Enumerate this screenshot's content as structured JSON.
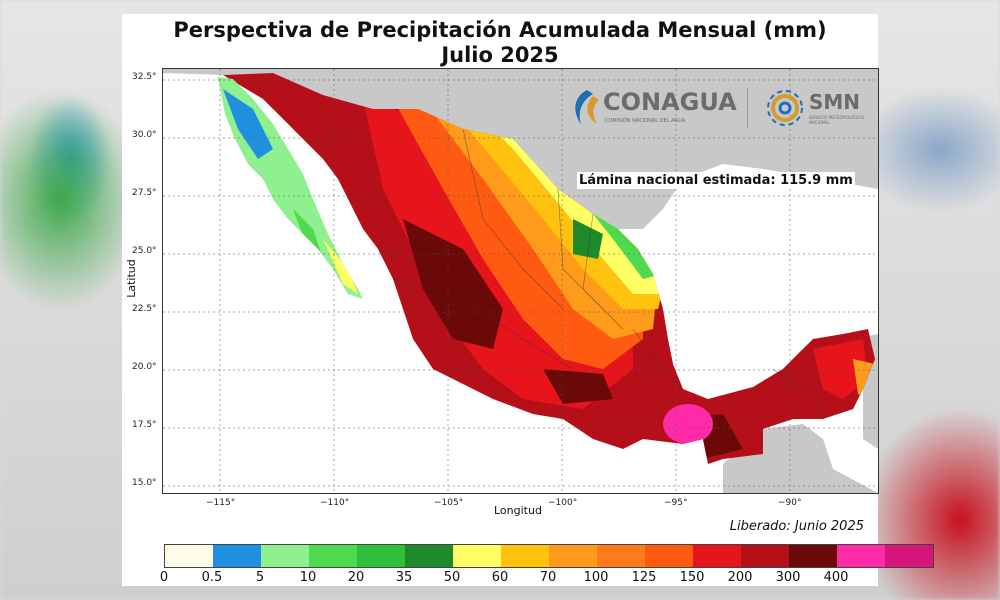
{
  "title_line1": "Perspectiva de Precipitación Acumulada Mensual (mm)",
  "title_line2": "Julio 2025",
  "ylabel": "Latitud",
  "xlabel": "Longitud",
  "lat_ticks": [
    "32.5°",
    "30.0°",
    "27.5°",
    "25.0°",
    "22.5°",
    "20.0°",
    "17.5°",
    "15.0°"
  ],
  "lon_ticks": [
    "−115°",
    "−110°",
    "−105°",
    "−100°",
    "−95°",
    "−90°"
  ],
  "lamina": "Lámina nacional estimada: 115.9 mm",
  "released": "Liberado: Junio 2025",
  "logos": {
    "conagua": "CONAGUA",
    "conagua_sub": "COMISIÓN NACIONAL DEL AGUA",
    "smn": "SMN",
    "smn_sub": "SERVICIO METEOROLÓGICO NACIONAL"
  },
  "colorbar": {
    "labels": [
      "0",
      "0.5",
      "5",
      "10",
      "20",
      "35",
      "50",
      "60",
      "70",
      "100",
      "125",
      "150",
      "200",
      "300",
      "400"
    ],
    "colors": [
      "#fdfde8",
      "#1f8fe0",
      "#8ef08e",
      "#4fd94f",
      "#2fbf3a",
      "#1f8a2a",
      "#ffff66",
      "#ffc20e",
      "#ff9b1a",
      "#ff7a1a",
      "#ff5a12",
      "#e8141c",
      "#b5101a",
      "#6b0808",
      "#ff2aa8",
      "#d6157a"
    ]
  },
  "colors": {
    "land": "#c8c8c8",
    "sea": "#ffffff",
    "grid": "#555555"
  }
}
